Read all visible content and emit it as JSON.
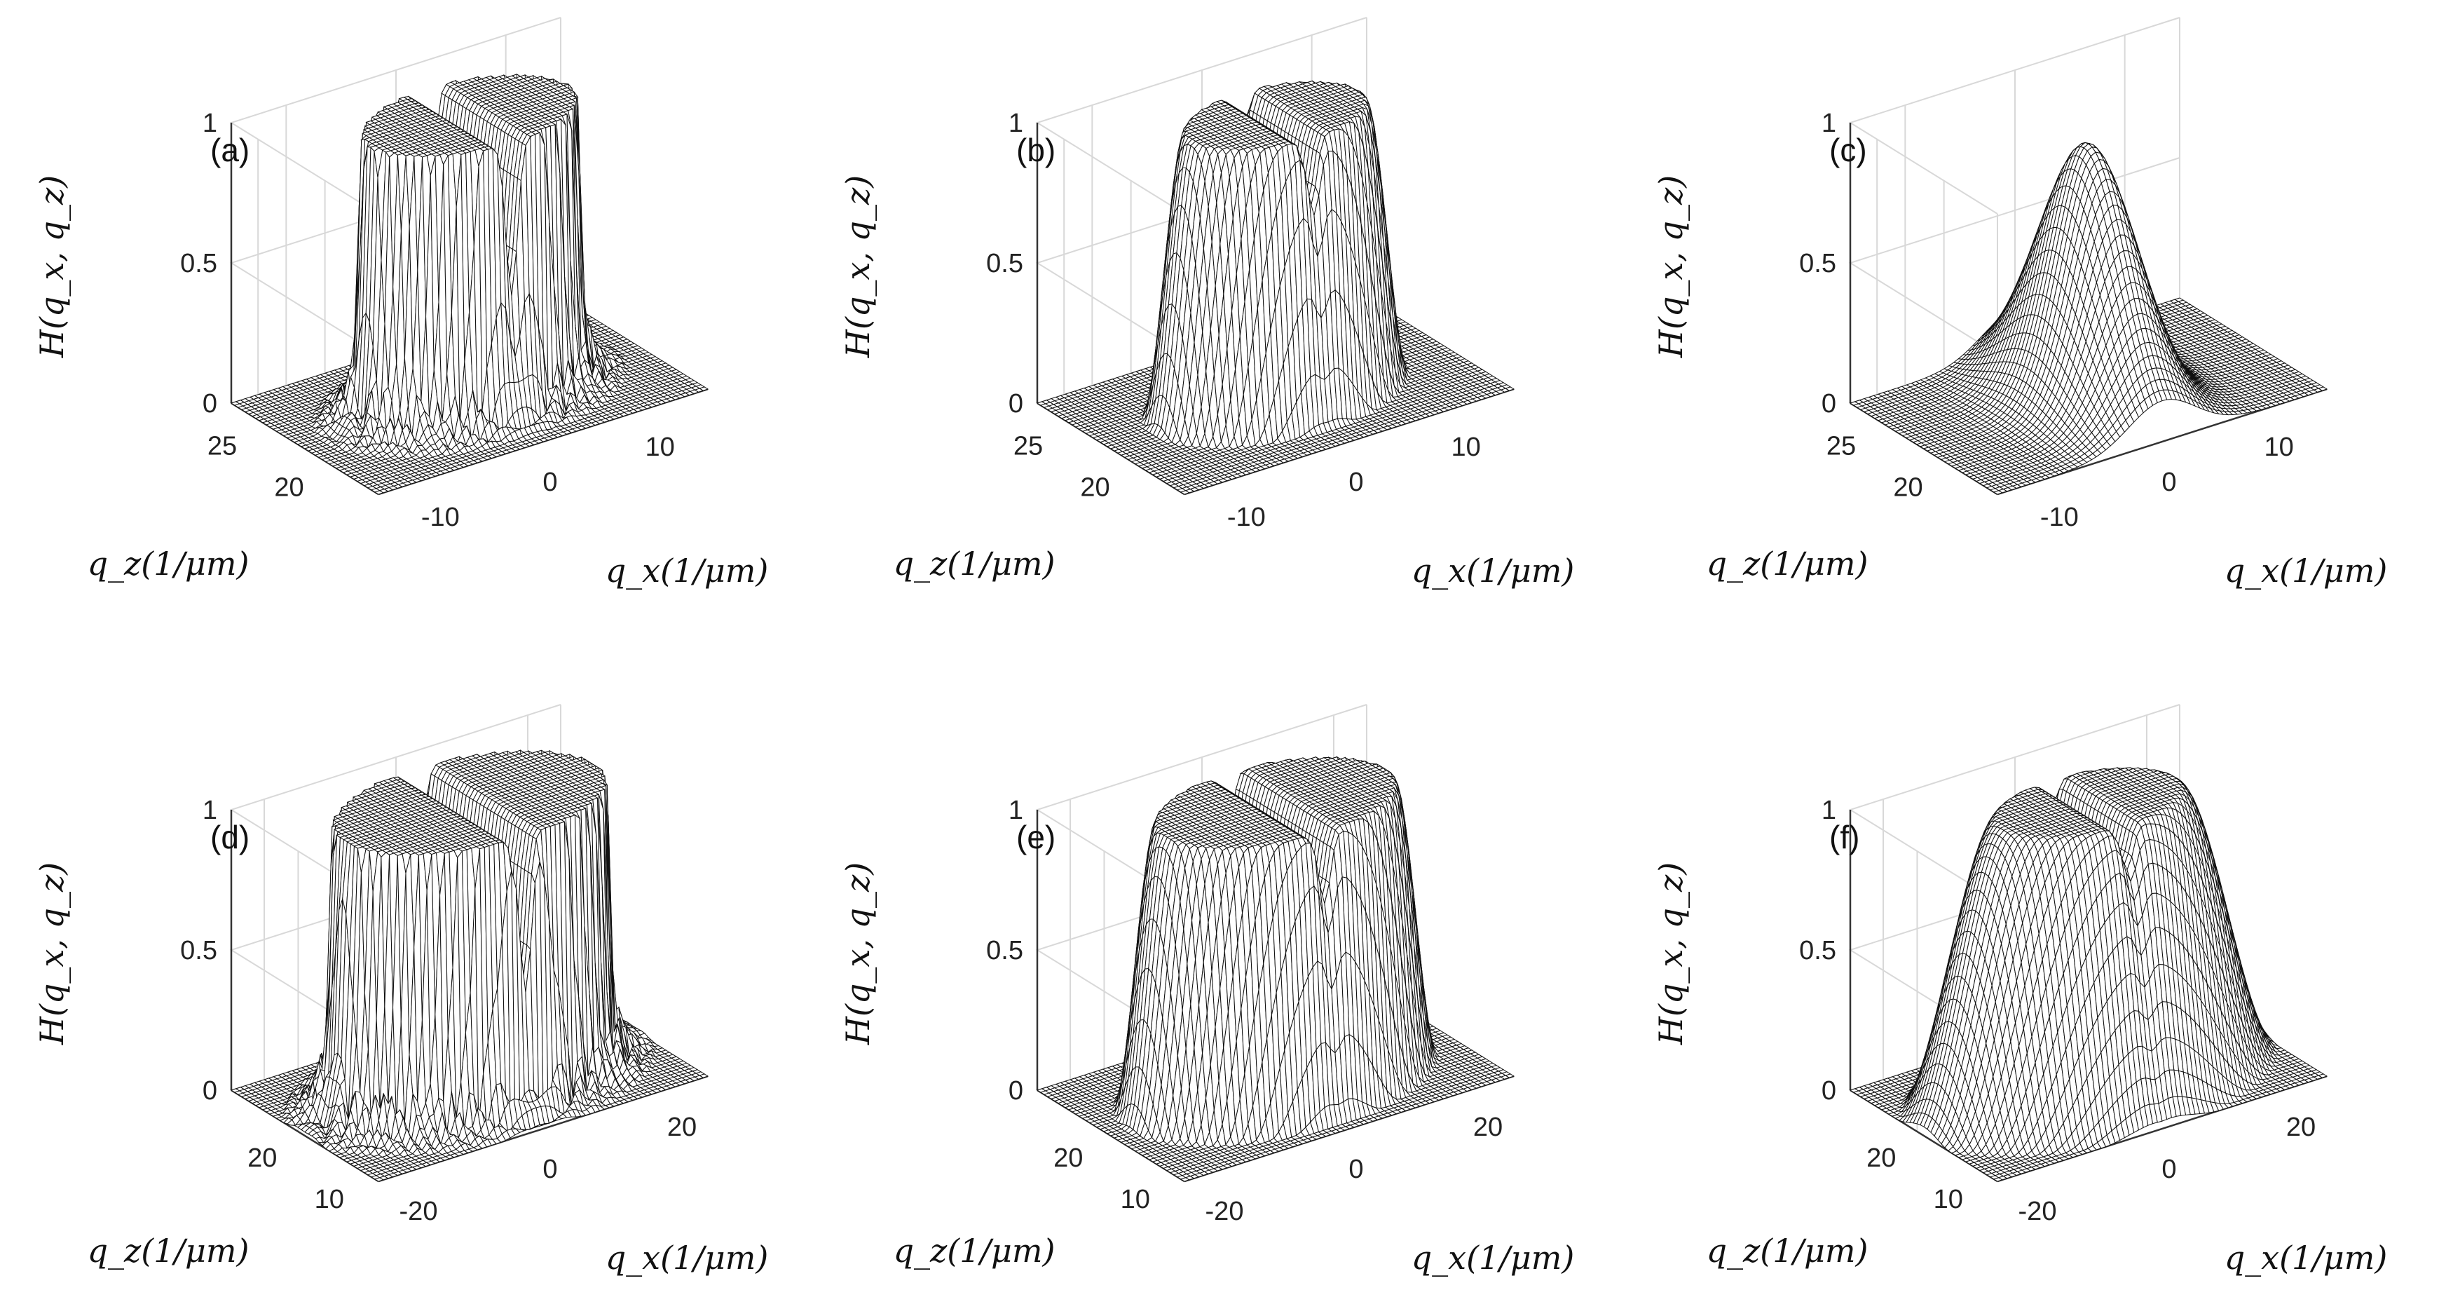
{
  "chart_data": [
    {
      "type": "surface",
      "panel_label": "(a)",
      "zlabel": "H(q_x, q_z)",
      "xlabel": "q_x(1/μm)",
      "ylabel": "q_z(1/μm)",
      "zlim": [
        0,
        1
      ],
      "z_ticks": [
        "0",
        "0.5",
        "1"
      ],
      "x_ticks": [
        "-10",
        "0",
        "10"
      ],
      "y_ticks": [
        "20",
        "25"
      ],
      "xlim": [
        -15,
        15
      ],
      "ylim": [
        16,
        27
      ],
      "grid": true,
      "shape": "flat-top plateau with sharp edges, dip at q_x = 0, strong edge ringing"
    },
    {
      "type": "surface",
      "panel_label": "(b)",
      "zlabel": "H(q_x, q_z)",
      "xlabel": "q_x(1/μm)",
      "ylabel": "q_z(1/μm)",
      "zlim": [
        0,
        1
      ],
      "z_ticks": [
        "0",
        "0.5",
        "1"
      ],
      "x_ticks": [
        "-10",
        "0",
        "10"
      ],
      "y_ticks": [
        "20",
        "25"
      ],
      "xlim": [
        -15,
        15
      ],
      "ylim": [
        16,
        27
      ],
      "grid": true,
      "shape": "smooth plateau with rounded edges and a shallow dip at q_x = 0"
    },
    {
      "type": "surface",
      "panel_label": "(c)",
      "zlabel": "H(q_x, q_z)",
      "xlabel": "q_x(1/μm)",
      "ylabel": "q_z(1/μm)",
      "zlim": [
        0,
        1
      ],
      "z_ticks": [
        "0",
        "0.5",
        "1"
      ],
      "x_ticks": [
        "-10",
        "0",
        "10"
      ],
      "y_ticks": [
        "20",
        "25"
      ],
      "xlim": [
        -15,
        15
      ],
      "ylim": [
        16,
        27
      ],
      "grid": true,
      "shape": "single broad peak reaching about 0.9"
    },
    {
      "type": "surface",
      "panel_label": "(d)",
      "zlabel": "H(q_x, q_z)",
      "xlabel": "q_x(1/μm)",
      "ylabel": "q_z(1/μm)",
      "zlim": [
        0,
        1
      ],
      "z_ticks": [
        "0",
        "0.5",
        "1"
      ],
      "x_ticks": [
        "-20",
        "0",
        "20"
      ],
      "y_ticks": [
        "10",
        "20"
      ],
      "xlim": [
        -25,
        25
      ],
      "ylim": [
        8,
        30
      ],
      "grid": true,
      "shape": "wide flat-top plateau with sharp edges, notch at q_x = 0, strong edge ringing"
    },
    {
      "type": "surface",
      "panel_label": "(e)",
      "zlabel": "H(q_x, q_z)",
      "xlabel": "q_x(1/μm)",
      "ylabel": "q_z(1/μm)",
      "zlim": [
        0,
        1
      ],
      "z_ticks": [
        "0",
        "0.5",
        "1"
      ],
      "x_ticks": [
        "-20",
        "0",
        "20"
      ],
      "y_ticks": [
        "10",
        "20"
      ],
      "xlim": [
        -25,
        25
      ],
      "ylim": [
        8,
        30
      ],
      "grid": true,
      "shape": "wide plateau with softened edges and a notch at q_x = 0"
    },
    {
      "type": "surface",
      "panel_label": "(f)",
      "zlabel": "H(q_x, q_z)",
      "xlabel": "q_x(1/μm)",
      "ylabel": "q_z(1/μm)",
      "zlim": [
        0,
        1
      ],
      "z_ticks": [
        "0",
        "0.5",
        "1"
      ],
      "x_ticks": [
        "-20",
        "0",
        "20"
      ],
      "y_ticks": [
        "10",
        "20"
      ],
      "xlim": [
        -25,
        25
      ],
      "ylim": [
        8,
        30
      ],
      "grid": true,
      "shape": "smooth rounded plateau with a shallow notch at q_x = 0"
    }
  ]
}
